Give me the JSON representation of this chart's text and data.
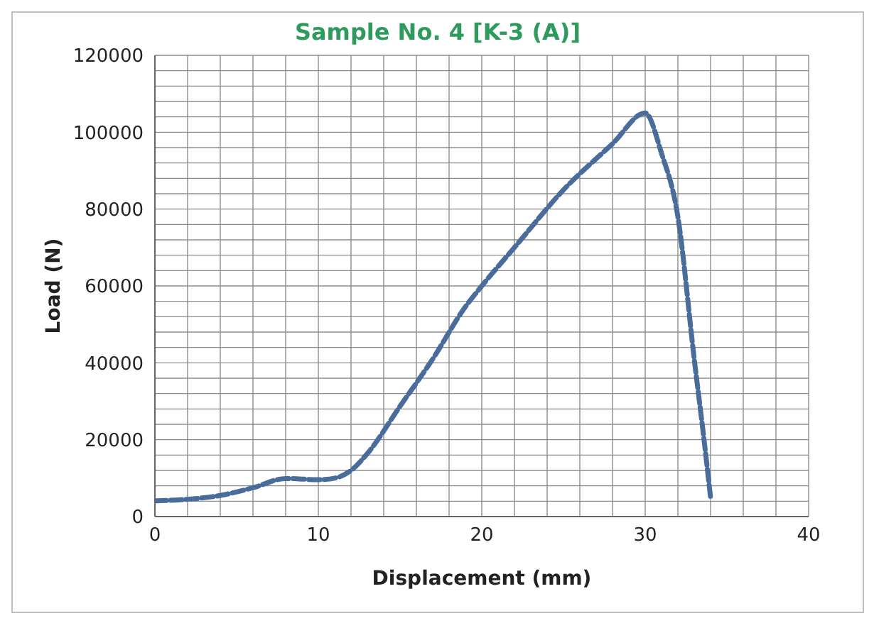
{
  "chart_data": {
    "type": "line",
    "title": "Sample No. 4 [K-3 (A)]",
    "xlabel": "Displacement (mm)",
    "ylabel": "Load (N)",
    "x": [
      0,
      2,
      4,
      6,
      8,
      10,
      11,
      12,
      13,
      15,
      17,
      19,
      20,
      22,
      25,
      28,
      30,
      31,
      32,
      33,
      33.6,
      34
    ],
    "series": [
      {
        "color": "#4a6c9b",
        "values": [
          4100,
          4500,
          5500,
          7500,
          9900,
          9600,
          10000,
          12000,
          16400,
          28700,
          41000,
          54600,
          60000,
          70000,
          85000,
          97000,
          105000,
          94500,
          78000,
          41000,
          20000,
          4900
        ]
      }
    ],
    "xlim": [
      0,
      40
    ],
    "xticks": [
      0,
      {
        "value": 2,
        "label": null
      },
      {
        "value": 4,
        "label": null
      },
      {
        "value": 6,
        "label": null
      },
      {
        "value": 8,
        "label": null
      },
      10,
      {
        "value": 12,
        "label": null
      },
      {
        "value": 14,
        "label": null
      },
      {
        "value": 16,
        "label": null
      },
      {
        "value": 18,
        "label": null
      },
      20,
      {
        "value": 22,
        "label": null
      },
      {
        "value": 24,
        "label": null
      },
      {
        "value": 26,
        "label": null
      },
      {
        "value": 28,
        "label": null
      },
      30,
      {
        "value": 32,
        "label": null
      },
      {
        "value": 34,
        "label": null
      },
      {
        "value": 36,
        "label": null
      },
      {
        "value": 38,
        "label": null
      },
      40
    ],
    "ylim": [
      0,
      120000
    ],
    "yticks": [
      0,
      {
        "value": 4000,
        "label": null
      },
      {
        "value": 8000,
        "label": null
      },
      {
        "value": 12000,
        "label": null
      },
      {
        "value": 16000,
        "label": null
      },
      20000,
      {
        "value": 24000,
        "label": null
      },
      {
        "value": 28000,
        "label": null
      },
      {
        "value": 32000,
        "label": null
      },
      {
        "value": 36000,
        "label": null
      },
      40000,
      {
        "value": 44000,
        "label": null
      },
      {
        "value": 48000,
        "label": null
      },
      {
        "value": 52000,
        "label": null
      },
      {
        "value": 56000,
        "label": null
      },
      60000,
      {
        "value": 64000,
        "label": null
      },
      {
        "value": 68000,
        "label": null
      },
      {
        "value": 72000,
        "label": null
      },
      {
        "value": 76000,
        "label": null
      },
      80000,
      {
        "value": 84000,
        "label": null
      },
      {
        "value": 88000,
        "label": null
      },
      {
        "value": 92000,
        "label": null
      },
      {
        "value": 96000,
        "label": null
      },
      100000,
      {
        "value": 104000,
        "label": null
      },
      {
        "value": 108000,
        "label": null
      },
      {
        "value": 112000,
        "label": null
      },
      {
        "value": 116000,
        "label": null
      },
      120000
    ],
    "grid": true,
    "line_style": "dashed",
    "marker": "none",
    "legend": false
  }
}
